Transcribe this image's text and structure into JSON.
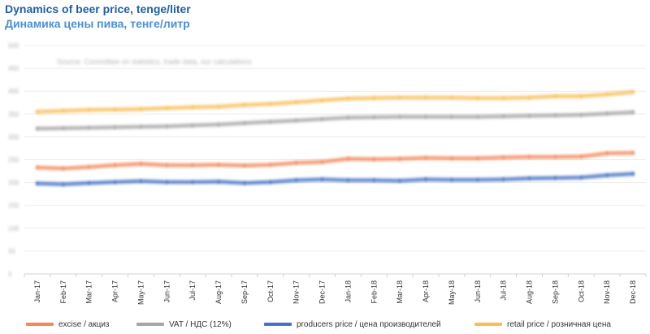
{
  "titles": {
    "en": "Dynamics of beer price, tenge/liter",
    "ru": "Динамика цены пива, тенге/литр"
  },
  "chart_data": {
    "type": "line",
    "title": "Dynamics of beer price, tenge/liter",
    "subtitle": "Динамика цены пива, тенге/литр",
    "xlabel": "",
    "ylabel": "",
    "note": "Source: Committee on statistics, trade data, our calculations",
    "categories": [
      "Jan-17",
      "Feb-17",
      "Mar-17",
      "Apr-17",
      "May-17",
      "Jun-17",
      "Jul-17",
      "Aug-17",
      "Sep-17",
      "Oct-17",
      "Nov-17",
      "Dec-17",
      "Jan-18",
      "Feb-18",
      "Mar-18",
      "Apr-18",
      "May-18",
      "Jun-18",
      "Jul-18",
      "Aug-18",
      "Sep-18",
      "Oct-18",
      "Nov-18",
      "Dec-18"
    ],
    "y_ticks": [
      "0",
      "50",
      "100",
      "150",
      "200",
      "250",
      "300",
      "350",
      "400",
      "450",
      "500"
    ],
    "ylim": [
      0,
      500
    ],
    "grid": true,
    "legend_position": "bottom",
    "series": [
      {
        "name": "excise /  акциз",
        "color": "#f4875a",
        "values": [
          233,
          231,
          234,
          238,
          241,
          238,
          238,
          239,
          237,
          239,
          243,
          245,
          252,
          251,
          252,
          254,
          253,
          253,
          255,
          256,
          256,
          257,
          264,
          265
        ]
      },
      {
        "name": "VAT /  НДС (12%)",
        "color": "#a6a6a6",
        "values": [
          318,
          319,
          320,
          321,
          322,
          323,
          325,
          327,
          330,
          333,
          336,
          339,
          342,
          343,
          344,
          344,
          344,
          344,
          345,
          346,
          347,
          348,
          351,
          354
        ]
      },
      {
        "name": "producers price  /  цена производителей",
        "color": "#4472c4",
        "values": [
          198,
          196,
          199,
          201,
          203,
          201,
          201,
          202,
          199,
          201,
          205,
          207,
          205,
          205,
          204,
          207,
          206,
          206,
          207,
          209,
          210,
          211,
          216,
          219
        ]
      },
      {
        "name": "retail price  /  розничная цена",
        "color": "#fbbd55",
        "values": [
          355,
          357,
          359,
          360,
          361,
          363,
          365,
          366,
          370,
          372,
          376,
          380,
          384,
          385,
          386,
          386,
          386,
          385,
          385,
          386,
          389,
          389,
          393,
          398
        ]
      }
    ]
  }
}
